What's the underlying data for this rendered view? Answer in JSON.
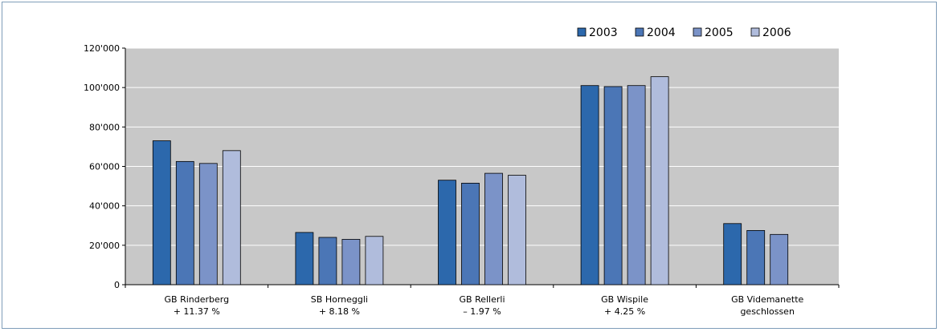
{
  "chart_data": {
    "type": "bar",
    "categories": [
      [
        "GB Rinderberg",
        "+ 11.37 %"
      ],
      [
        "SB Horneggli",
        "+ 8.18 %"
      ],
      [
        "GB Rellerli",
        "– 1.97 %"
      ],
      [
        "GB Wispile",
        "+ 4.25 %"
      ],
      [
        "GB Videmanette",
        "geschlossen"
      ]
    ],
    "series": [
      {
        "name": "2003",
        "color": "#2c68ac",
        "values": [
          73000,
          26500,
          53000,
          101000,
          31000
        ]
      },
      {
        "name": "2004",
        "color": "#4b76b6",
        "values": [
          62500,
          24000,
          51500,
          100500,
          27500
        ]
      },
      {
        "name": "2005",
        "color": "#7b93c8",
        "values": [
          61500,
          23000,
          56500,
          101000,
          25500
        ]
      },
      {
        "name": "2006",
        "color": "#b0bcdc",
        "values": [
          68000,
          24500,
          55500,
          105500,
          null
        ]
      }
    ],
    "yticks": [
      "0",
      "20'000",
      "40'000",
      "60'000",
      "80'000",
      "100'000",
      "120'000"
    ],
    "ylim": [
      0,
      120000
    ],
    "grid": true,
    "legend": "top-right",
    "plot_background": "#c8c8c8"
  }
}
